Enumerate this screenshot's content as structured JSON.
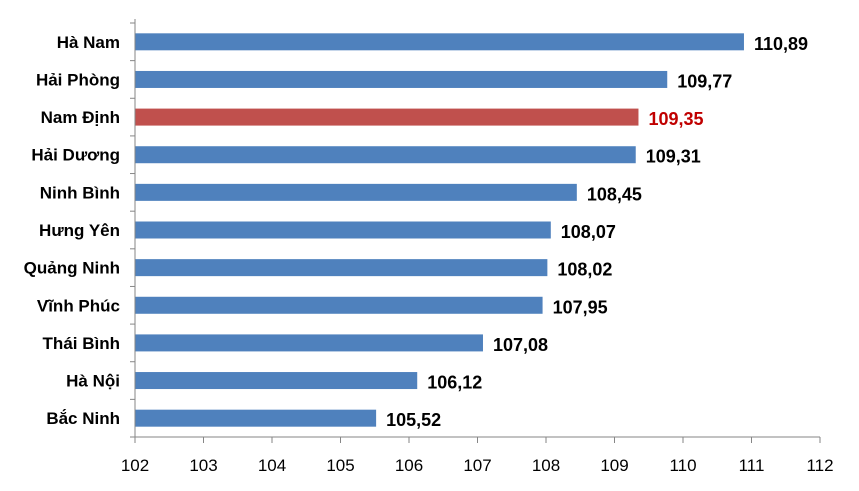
{
  "chart_data": {
    "type": "bar",
    "orientation": "horizontal",
    "categories": [
      "Hà Nam",
      "Hải Phòng",
      "Nam Định",
      "Hải Dương",
      "Ninh Bình",
      "Hưng Yên",
      "Quảng Ninh",
      "Vĩnh Phúc",
      "Thái Bình",
      "Hà Nội",
      "Bắc Ninh"
    ],
    "values": [
      110.89,
      109.77,
      109.35,
      109.31,
      108.45,
      108.07,
      108.02,
      107.95,
      107.08,
      106.12,
      105.52
    ],
    "value_labels": [
      "110,89",
      "109,77",
      "109,35",
      "109,31",
      "108,45",
      "108,07",
      "108,02",
      "107,95",
      "107,08",
      "106,12",
      "105,52"
    ],
    "highlight": "Nam Định",
    "xlim": [
      102,
      112
    ],
    "xticks": [
      102,
      103,
      104,
      105,
      106,
      107,
      108,
      109,
      110,
      111,
      112
    ],
    "xtick_labels": [
      "102",
      "103",
      "104",
      "105",
      "106",
      "107",
      "108",
      "109",
      "110",
      "111",
      "112"
    ],
    "grid": false,
    "legend": "none",
    "title": "",
    "xlabel": "",
    "ylabel": ""
  },
  "colors": {
    "bar": "#4f81bd",
    "highlight_bar": "#c0504d",
    "highlight_label": "#c00000",
    "label": "#000000",
    "axis": "#868686"
  }
}
